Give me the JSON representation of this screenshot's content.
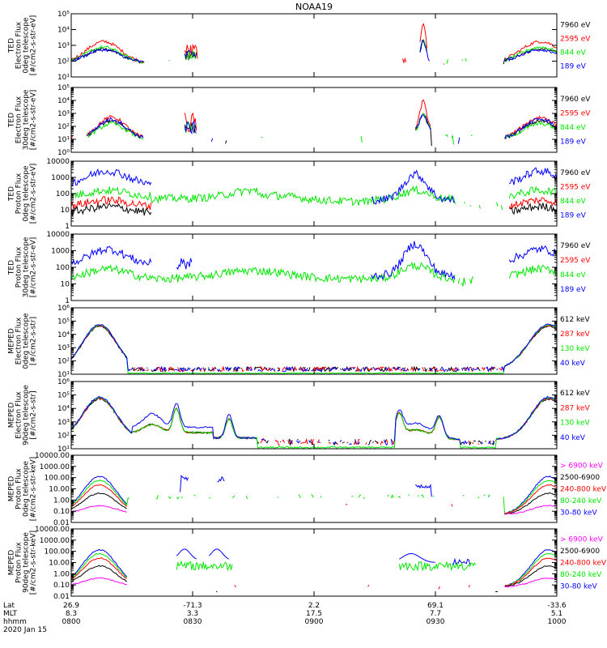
{
  "title": "NOAA19",
  "colors": {
    "black": "#000000",
    "red": "#ff0000",
    "green": "#00e600",
    "blue": "#0000ff",
    "magenta": "#ff00ff"
  },
  "chart_data": [
    {
      "type": "line",
      "ylabel": [
        "TED",
        "Electron Flux",
        "0deg telescope",
        "[#/cm2-s-str-eV]"
      ],
      "yscale": "log",
      "ylim": [
        1,
        100000
      ],
      "yticks": [
        "10¹",
        "10²",
        "10³",
        "10⁴",
        "10⁵"
      ],
      "legend": [
        {
          "label": "7960 eV",
          "color": "black"
        },
        {
          "label": "2595 eV",
          "color": "red"
        },
        {
          "label": "844 eV",
          "color": "green"
        },
        {
          "label": "189 eV",
          "color": "blue"
        }
      ],
      "profile": "ted_e0"
    },
    {
      "type": "line",
      "ylabel": [
        "TED",
        "Electron Flux",
        "30deg telescope",
        "[#/cm2-s-str-eV]"
      ],
      "yscale": "log",
      "ylim": [
        1,
        100000
      ],
      "yticks": [
        "10⁰",
        "10¹",
        "10²",
        "10³",
        "10⁴",
        "10⁵"
      ],
      "legend": [
        {
          "label": "7960 eV",
          "color": "black"
        },
        {
          "label": "2595 eV",
          "color": "red"
        },
        {
          "label": "844 eV",
          "color": "green"
        },
        {
          "label": "189 eV",
          "color": "blue"
        }
      ],
      "profile": "ted_e30"
    },
    {
      "type": "line",
      "ylabel": [
        "TED",
        "Proton Flux",
        "0deg telescope",
        "[#/cm2-s-str-eV]"
      ],
      "yscale": "log",
      "ylim": [
        1,
        10000
      ],
      "yticks": [
        "1",
        "10",
        "100",
        "1000",
        "10000"
      ],
      "legend": [
        {
          "label": "7960 eV",
          "color": "black"
        },
        {
          "label": "2595 eV",
          "color": "red"
        },
        {
          "label": "844 eV",
          "color": "green"
        },
        {
          "label": "189 eV",
          "color": "blue"
        }
      ],
      "profile": "ted_p0"
    },
    {
      "type": "line",
      "ylabel": [
        "TED",
        "Proton Flux",
        "30deg telescope",
        "[#/cm2-s-str-eV]"
      ],
      "yscale": "log",
      "ylim": [
        1,
        10000
      ],
      "yticks": [
        "1",
        "10",
        "100",
        "1000",
        "10000"
      ],
      "legend": [
        {
          "label": "7960 eV",
          "color": "black"
        },
        {
          "label": "2595 eV",
          "color": "red"
        },
        {
          "label": "844 eV",
          "color": "green"
        },
        {
          "label": "189 eV",
          "color": "blue"
        }
      ],
      "profile": "ted_p30"
    },
    {
      "type": "line",
      "ylabel": [
        "MEPED",
        "Electron Flux",
        "0deg telescope",
        "[#/cm2-s-str]"
      ],
      "yscale": "log",
      "ylim": [
        10,
        1000000
      ],
      "yticks": [
        "10¹",
        "10²",
        "10³",
        "10⁴",
        "10⁵",
        "10⁶"
      ],
      "legend": [
        {
          "label": "612 keV",
          "color": "black"
        },
        {
          "label": "287 keV",
          "color": "red"
        },
        {
          "label": "130 keV",
          "color": "green"
        },
        {
          "label": "40 keV",
          "color": "blue"
        }
      ],
      "profile": "mep_e0"
    },
    {
      "type": "line",
      "ylabel": [
        "MEPED",
        "Electron Flux",
        "90deg telescope",
        "[#/cm2-s-str]"
      ],
      "yscale": "log",
      "ylim": [
        10,
        1000000
      ],
      "yticks": [
        "10¹",
        "10²",
        "10³",
        "10⁴",
        "10⁵",
        "10⁶"
      ],
      "legend": [
        {
          "label": "612 keV",
          "color": "black"
        },
        {
          "label": "287 keV",
          "color": "red"
        },
        {
          "label": "130 keV",
          "color": "green"
        },
        {
          "label": "40 keV",
          "color": "blue"
        }
      ],
      "profile": "mep_e90"
    },
    {
      "type": "line",
      "ylabel": [
        "MEPED",
        "Proton Flux",
        "0deg telescope",
        "[#/cm2-s-str-keV]"
      ],
      "yscale": "log",
      "ylim": [
        0.01,
        10000
      ],
      "yticks": [
        "0.01",
        "0.10",
        "1.00",
        "10.00",
        "100.00",
        "1000.00",
        "10000.00"
      ],
      "legend": [
        {
          "label": "> 6900 keV",
          "color": "magenta"
        },
        {
          "label": "2500-6900",
          "color": "black"
        },
        {
          "label": "240-800 keV",
          "color": "red"
        },
        {
          "label": "80-240 keV",
          "color": "green"
        },
        {
          "label": "30-80 keV",
          "color": "blue"
        }
      ],
      "profile": "mep_p0"
    },
    {
      "type": "line",
      "ylabel": [
        "MEPED",
        "Proton Flux",
        "90deg telescope",
        "[#/cm2-s-str-keV]"
      ],
      "yscale": "log",
      "ylim": [
        0.01,
        10000
      ],
      "yticks": [
        "0.01",
        "0.10",
        "1.00",
        "10.00",
        "100.00",
        "1000.00",
        "10000.00"
      ],
      "legend": [
        {
          "label": "> 6900 keV",
          "color": "magenta"
        },
        {
          "label": "2500-6900",
          "color": "black"
        },
        {
          "label": "240-800 keV",
          "color": "red"
        },
        {
          "label": "80-240 keV",
          "color": "green"
        },
        {
          "label": "30-80 keV",
          "color": "blue"
        }
      ],
      "profile": "mep_p90"
    }
  ],
  "xaxis": {
    "row_labels": [
      "Lat",
      "MLT",
      "hhmm",
      "2020 Jan 15"
    ],
    "ticks": [
      {
        "t": 0,
        "lat": "26.9",
        "mlt": "8.3",
        "hhmm": "0800"
      },
      {
        "t": 30,
        "lat": "-71.3",
        "mlt": "3.3",
        "hhmm": "0830"
      },
      {
        "t": 60,
        "lat": "2.2",
        "mlt": "17.5",
        "hhmm": "0900"
      },
      {
        "t": 90,
        "lat": "69.1",
        "mlt": "7.7",
        "hhmm": "0930"
      },
      {
        "t": 120,
        "lat": "-33.6",
        "mlt": "5.1",
        "hhmm": "1000"
      }
    ],
    "xlim_minutes": [
      0,
      120
    ]
  }
}
